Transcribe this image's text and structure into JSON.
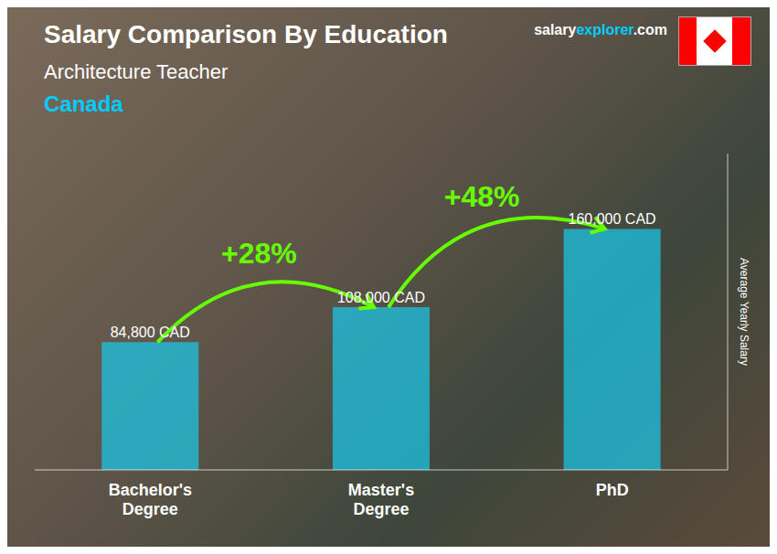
{
  "chart_data": {
    "type": "bar",
    "title": "Salary Comparison By Education",
    "subtitle": "Architecture Teacher",
    "annotations": {
      "country": "Canada",
      "watermark": [
        "salary",
        "explorer",
        ".com"
      ],
      "changes": [
        "+28%",
        "+48%"
      ]
    },
    "categories": [
      "Bachelor's\nDegree",
      "Master's\nDegree",
      "PhD"
    ],
    "values": [
      84800,
      108000,
      160000
    ],
    "value_labels": [
      "84,800 CAD",
      "108,000 CAD",
      "160,000 CAD"
    ],
    "color": "#1ac8e8",
    "ylabel": "Average Yearly Salary",
    "ylim": [
      0,
      210000
    ],
    "grid": false,
    "data_labels": true,
    "tick_labels": "x"
  }
}
